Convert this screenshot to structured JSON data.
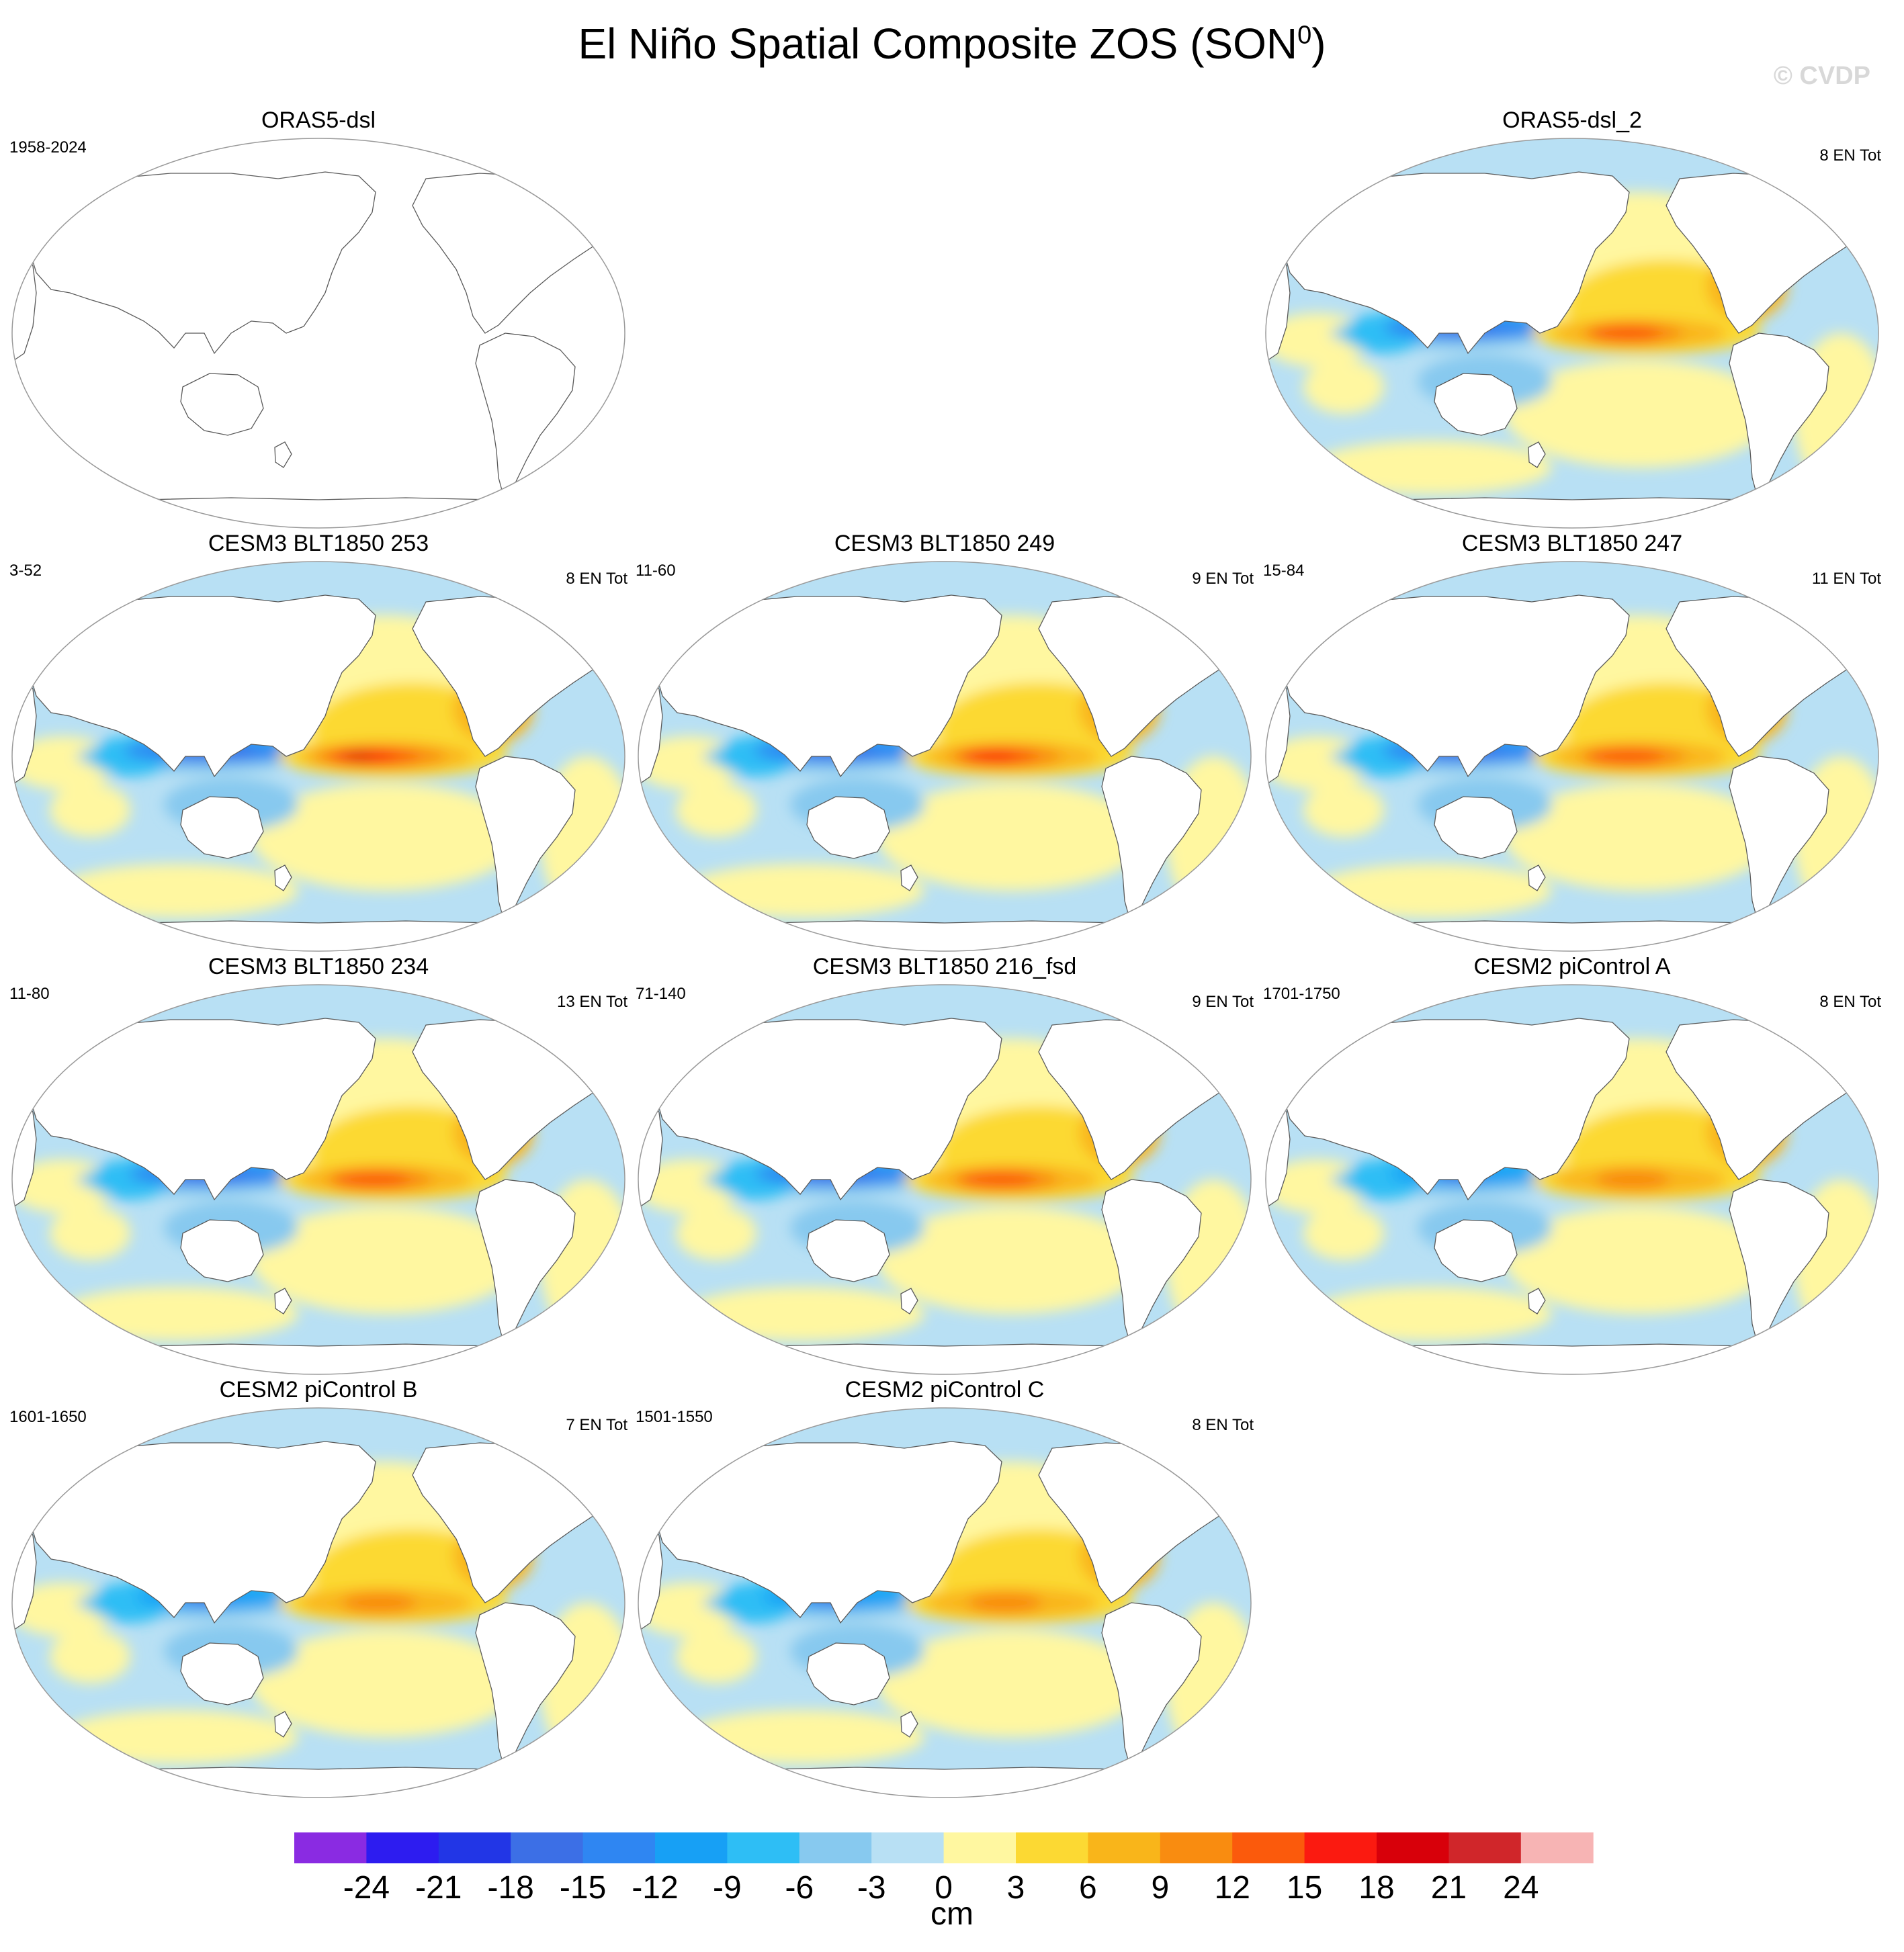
{
  "title": {
    "main": "El Niño Spatial Composite ZOS (SON",
    "sup": "0",
    "close": ")"
  },
  "watermark": "© CVDP",
  "panels": [
    {
      "name": "ORAS5-dsl",
      "years": "1958-2024",
      "count": "",
      "filled": false
    },
    {
      "name": "ORAS5-dsl_2",
      "years": "",
      "count": "8 EN Tot",
      "filled": true,
      "intensity": 0.75
    },
    {
      "name": "CESM3 BLT1850 253",
      "years": "3-52",
      "count": "8 EN Tot",
      "filled": true,
      "intensity": 1.0
    },
    {
      "name": "CESM3 BLT1850 249",
      "years": "11-60",
      "count": "9 EN Tot",
      "filled": true,
      "intensity": 0.85
    },
    {
      "name": "CESM3 BLT1850 247",
      "years": "15-84",
      "count": "11 EN Tot",
      "filled": true,
      "intensity": 0.8
    },
    {
      "name": "CESM3 BLT1850 234",
      "years": "11-80",
      "count": "13 EN Tot",
      "filled": true,
      "intensity": 0.8
    },
    {
      "name": "CESM3 BLT1850 216_fsd",
      "years": "71-140",
      "count": "9 EN Tot",
      "filled": true,
      "intensity": 0.8
    },
    {
      "name": "CESM2 piControl A",
      "years": "1701-1750",
      "count": "8 EN Tot",
      "filled": true,
      "intensity": 0.55
    },
    {
      "name": "CESM2 piControl B",
      "years": "1601-1650",
      "count": "7 EN Tot",
      "filled": true,
      "intensity": 0.55
    },
    {
      "name": "CESM2 piControl C",
      "years": "1501-1550",
      "count": "8 EN Tot",
      "filled": true,
      "intensity": 0.55
    }
  ],
  "colorbar": {
    "unit": "cm",
    "ticks": [
      "-24",
      "-21",
      "-18",
      "-15",
      "-12",
      "-9",
      "-6",
      "-3",
      "0",
      "3",
      "6",
      "9",
      "12",
      "15",
      "18",
      "21",
      "24"
    ],
    "colors": [
      "#8a2be2",
      "#2d1cf0",
      "#2236e6",
      "#3c6fe6",
      "#2f86f2",
      "#17a0f5",
      "#2ebef5",
      "#87c9ef",
      "#b8e0f4",
      "#fff7a0",
      "#fcd933",
      "#f9b51a",
      "#f98c10",
      "#fb5a0c",
      "#fb1a10",
      "#d8000a",
      "#d0262a",
      "#f7b4b4"
    ]
  },
  "chart_data": {
    "type": "heatmap",
    "title": "El Niño Spatial Composite ZOS (SON0)",
    "unit": "cm",
    "levels": [
      -24,
      -21,
      -18,
      -15,
      -12,
      -9,
      -6,
      -3,
      0,
      3,
      6,
      9,
      12,
      15,
      18,
      21,
      24
    ],
    "panels": [
      {
        "name": "ORAS5-dsl",
        "period": "1958-2024",
        "events": ""
      },
      {
        "name": "ORAS5-dsl_2",
        "period": "",
        "events": "8 EN Tot"
      },
      {
        "name": "CESM3 BLT1850 253",
        "period": "3-52",
        "events": "8 EN Tot"
      },
      {
        "name": "CESM3 BLT1850 249",
        "period": "11-60",
        "events": "9 EN Tot"
      },
      {
        "name": "CESM3 BLT1850 247",
        "period": "15-84",
        "events": "11 EN Tot"
      },
      {
        "name": "CESM3 BLT1850 234",
        "period": "11-80",
        "events": "13 EN Tot"
      },
      {
        "name": "CESM3 BLT1850 216_fsd",
        "period": "71-140",
        "events": "9 EN Tot"
      },
      {
        "name": "CESM2 piControl A",
        "period": "1701-1750",
        "events": "8 EN Tot"
      },
      {
        "name": "CESM2 piControl B",
        "period": "1601-1650",
        "events": "7 EN Tot"
      },
      {
        "name": "CESM2 piControl C",
        "period": "1501-1550",
        "events": "8 EN Tot"
      }
    ]
  }
}
